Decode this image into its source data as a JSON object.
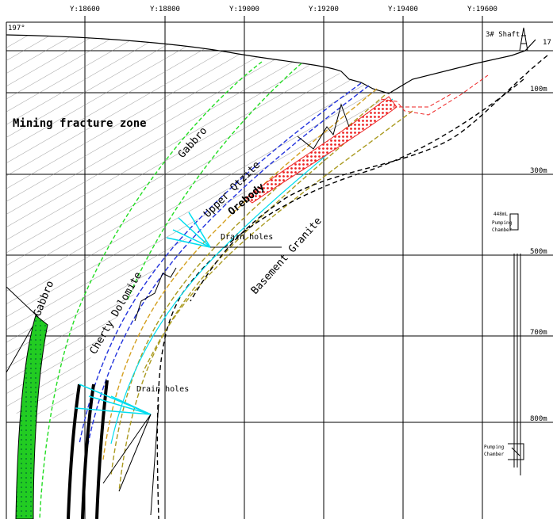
{
  "axis": [
    "Y:18600",
    "Y:18800",
    "Y:19000",
    "Y:19200",
    "Y:19400",
    "Y:19600"
  ],
  "elevation": "197°",
  "shaft": "3# Shaft",
  "elevation_right": "17",
  "depths": [
    "100m",
    "300m",
    "500m",
    "700m",
    "800m"
  ],
  "labels": {
    "mining_fracture_zone": "Mining fracture zone",
    "gabbro_upper": "Gabbro",
    "gabbro_lower": "Gabbro",
    "upper_qtzite": "Upper Qtzite",
    "orebody": "Orebody",
    "cherty_dolomite": "Cherty Dolomite",
    "basement_granite": "Basement Granite",
    "drain_holes_upper": "Drain holes",
    "drain_holes_lower": "Drain holes",
    "chamber_448": "448mL",
    "pumping_upper": "Pumping",
    "chamber_upper": "Chamber",
    "pumping_lower": "Pumping",
    "chamber_lower": "Chamber"
  }
}
